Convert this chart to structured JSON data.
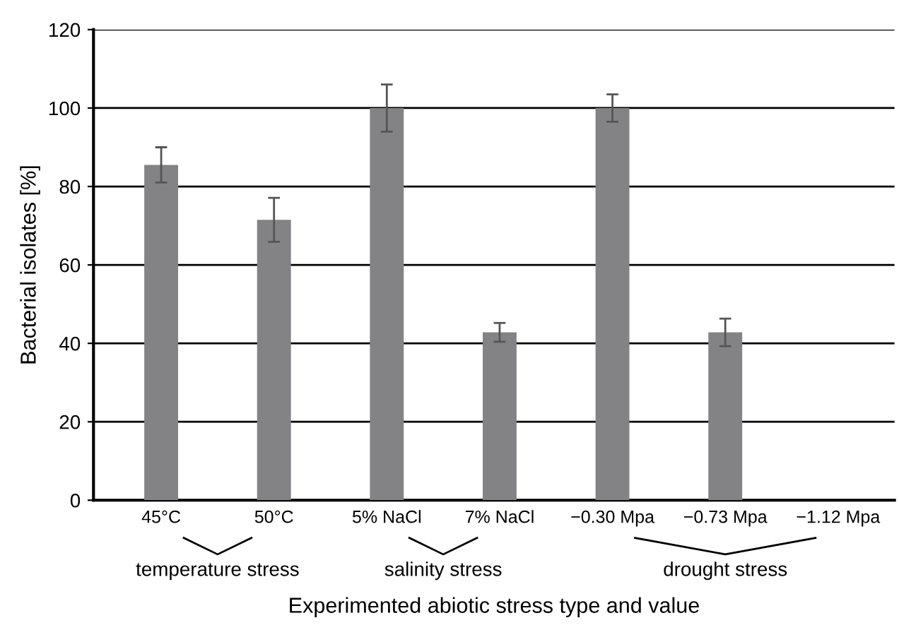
{
  "chart_data": {
    "type": "bar",
    "xlabel": "Experimented abiotic stress type and value",
    "ylabel": "Bacterial isolates [%]",
    "categories": [
      "45°C",
      "50°C",
      "5% NaCl",
      "7% NaCl",
      "−0.30 Mpa",
      "−0.73 Mpa",
      "−1.12 Mpa"
    ],
    "values": [
      85.5,
      71.5,
      100,
      42.8,
      100,
      42.8,
      0
    ],
    "errors": [
      4.5,
      5.6,
      6,
      2.4,
      3.5,
      3.5,
      null
    ],
    "color": "#838386",
    "ylim": [
      0,
      120
    ],
    "yticks": [
      0,
      20,
      40,
      60,
      80,
      100,
      120
    ],
    "grid": "y",
    "annotations": [
      "temperature stress",
      "salinity stress",
      "drought stress"
    ]
  }
}
